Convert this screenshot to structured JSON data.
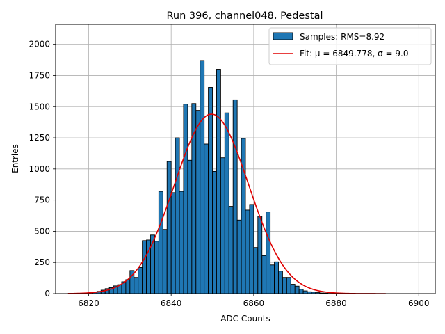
{
  "chart_data": {
    "type": "bar",
    "title": "Run 396, channel048, Pedestal",
    "xlabel": "ADC Counts",
    "ylabel": "Entries",
    "xlim": [
      6812,
      6904
    ],
    "ylim": [
      0,
      2160
    ],
    "xticks": [
      6820,
      6840,
      6860,
      6880,
      6900
    ],
    "yticks": [
      0,
      250,
      500,
      750,
      1000,
      1250,
      1500,
      1750,
      2000
    ],
    "grid": true,
    "legend_position": "top-right",
    "colors": {
      "bars": "#1f77b4",
      "bar_edge": "#000000",
      "fit": "#e00000",
      "grid": "#b0b0b0"
    },
    "bin_width": 1,
    "series": [
      {
        "name": "Samples: RMS=8.92",
        "type": "histogram",
        "x": [
          6819,
          6820,
          6821,
          6822,
          6823,
          6824,
          6825,
          6826,
          6827,
          6828,
          6829,
          6830,
          6831,
          6832,
          6833,
          6834,
          6835,
          6836,
          6837,
          6838,
          6839,
          6840,
          6841,
          6842,
          6843,
          6844,
          6845,
          6846,
          6847,
          6848,
          6849,
          6850,
          6851,
          6852,
          6853,
          6854,
          6855,
          6856,
          6857,
          6858,
          6859,
          6860,
          6861,
          6862,
          6863,
          6864,
          6865,
          6866,
          6867,
          6868,
          6869,
          6870,
          6871,
          6872,
          6873,
          6874,
          6875,
          6876,
          6877,
          6878,
          6879,
          6880
        ],
        "values": [
          5,
          8,
          14,
          18,
          28,
          40,
          48,
          62,
          72,
          95,
          112,
          185,
          130,
          210,
          425,
          430,
          470,
          420,
          820,
          515,
          1060,
          810,
          1250,
          820,
          1520,
          1070,
          1525,
          1470,
          1870,
          1200,
          1655,
          980,
          1800,
          1090,
          1450,
          700,
          1555,
          590,
          1245,
          670,
          715,
          370,
          620,
          305,
          655,
          230,
          255,
          180,
          130,
          130,
          75,
          60,
          35,
          22,
          15,
          12,
          8,
          5,
          4,
          2,
          2,
          1
        ]
      },
      {
        "name": "Fit: μ = 6849.778, σ = 9.0",
        "type": "line",
        "mu": 6849.778,
        "sigma": 9.0,
        "amplitude": 1440,
        "x_range": [
          6815,
          6892
        ]
      }
    ]
  }
}
